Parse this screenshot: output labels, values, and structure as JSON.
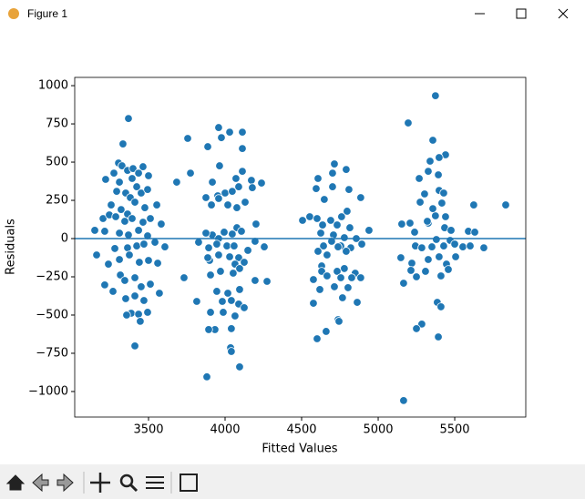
{
  "window": {
    "title": "Figure 1"
  },
  "chart_data": {
    "type": "scatter",
    "xlabel": "Fitted Values",
    "ylabel": "Residuals",
    "color": "#1f77b4",
    "hline": 0,
    "hline_color": "#1f77b4",
    "xlim": [
      3018,
      5964
    ],
    "ylim": [
      -1167,
      1054
    ],
    "xticks": [
      3500,
      4000,
      4500,
      5000,
      5500
    ],
    "yticks": [
      {
        "value": -1000,
        "label": "−1000"
      },
      {
        "value": -750,
        "label": "−750"
      },
      {
        "value": -500,
        "label": "−500"
      },
      {
        "value": -250,
        "label": "−250"
      },
      0,
      250,
      500,
      750,
      1000
    ],
    "x": [
      3369,
      3333,
      3304,
      3327,
      3363,
      3399,
      3435,
      3464,
      3500,
      3220,
      3274,
      3310,
      3393,
      3423,
      3452,
      3494,
      3292,
      3351,
      3381,
      3411,
      3256,
      3321,
      3363,
      3476,
      3554,
      3203,
      3244,
      3286,
      3345,
      3393,
      3464,
      3512,
      3583,
      3149,
      3214,
      3310,
      3369,
      3435,
      3494,
      3161,
      3280,
      3363,
      3423,
      3470,
      3542,
      3607,
      3238,
      3310,
      3375,
      3440,
      3500,
      3560,
      3214,
      3268,
      3316,
      3345,
      3411,
      3452,
      3512,
      3571,
      3351,
      3411,
      3470,
      3387,
      3435,
      3494,
      3357,
      3446,
      3411,
      3958,
      4030,
      4113,
      3887,
      3976,
      4113,
      3756,
      3774,
      3964,
      4071,
      4113,
      4172,
      3917,
      4000,
      4047,
      3952,
      4089,
      4238,
      3875,
      3958,
      4131,
      4178,
      4018,
      4077,
      3911,
      3684,
      4202,
      4077,
      3994,
      3917,
      3875,
      4047,
      4107,
      3958,
      4196,
      3827,
      4012,
      3946,
      4059,
      3893,
      4149,
      4256,
      3899,
      3958,
      4030,
      4089,
      4065,
      4125,
      3887,
      3732,
      3905,
      3970,
      4053,
      4095,
      4196,
      4274,
      3946,
      4018,
      4095,
      4041,
      3982,
      4089,
      3815,
      3905,
      3988,
      4065,
      4125,
      4041,
      3934,
      3893,
      4036,
      4041,
      4095,
      3881,
      4714,
      4607,
      4702,
      4791,
      4702,
      4595,
      4809,
      4886,
      4648,
      4553,
      4601,
      4637,
      4690,
      4761,
      4797,
      4732,
      4815,
      4940,
      4506,
      4625,
      4708,
      4779,
      4857,
      4643,
      4696,
      4756,
      4821,
      4893,
      4607,
      4666,
      4738,
      4791,
      4779,
      4732,
      4631,
      4631,
      4666,
      4850,
      4886,
      4827,
      4756,
      4577,
      4714,
      4619,
      4767,
      4803,
      4863,
      4577,
      4738,
      4744,
      4660,
      4601,
      5374,
      5196,
      5357,
      5440,
      5398,
      5339,
      5393,
      5327,
      5268,
      5303,
      5398,
      5428,
      5416,
      5274,
      5440,
      5374,
      5327,
      5357,
      5154,
      5208,
      5238,
      5321,
      5434,
      5476,
      5589,
      5624,
      5690,
      5243,
      5285,
      5351,
      5380,
      5428,
      5470,
      5500,
      5553,
      5148,
      5220,
      5327,
      5398,
      5446,
      5506,
      5458,
      5410,
      5214,
      5166,
      5309,
      5250,
      5386,
      5410,
      5285,
      5250,
      5393,
      5166,
      5601,
      5631,
      5833
    ],
    "values": [
      785,
      619,
      494,
      476,
      446,
      458,
      428,
      470,
      411,
      387,
      428,
      369,
      393,
      339,
      298,
      321,
      309,
      298,
      268,
      238,
      220,
      190,
      161,
      202,
      220,
      131,
      155,
      143,
      113,
      131,
      107,
      131,
      95,
      54,
      48,
      36,
      24,
      54,
      18,
      -107,
      -65,
      -60,
      -48,
      -36,
      -24,
      -54,
      -167,
      -137,
      -107,
      -155,
      -143,
      -161,
      -303,
      -345,
      -238,
      -274,
      -256,
      -315,
      -298,
      -357,
      -393,
      -375,
      -405,
      -488,
      -494,
      -482,
      -500,
      -541,
      -702,
      726,
      696,
      696,
      601,
      660,
      589,
      655,
      428,
      476,
      393,
      440,
      381,
      369,
      298,
      309,
      280,
      339,
      363,
      268,
      262,
      238,
      333,
      220,
      202,
      220,
      369,
      95,
      71,
      42,
      24,
      36,
      30,
      48,
      0,
      -18,
      -24,
      -48,
      -36,
      -48,
      -60,
      -77,
      -54,
      -143,
      -107,
      -119,
      -125,
      -167,
      -155,
      -125,
      -256,
      -238,
      -214,
      -226,
      -196,
      -274,
      -280,
      -345,
      -357,
      -333,
      -405,
      -411,
      -428,
      -411,
      -482,
      -482,
      -506,
      -452,
      -589,
      -595,
      -595,
      -714,
      -738,
      -839,
      -904,
      488,
      393,
      428,
      452,
      339,
      327,
      321,
      268,
      256,
      143,
      131,
      89,
      119,
      143,
      179,
      89,
      71,
      54,
      119,
      36,
      24,
      6,
      0,
      -48,
      -18,
      -48,
      -60,
      -36,
      -83,
      -107,
      -54,
      -83,
      -196,
      -214,
      -179,
      -214,
      -244,
      -226,
      -256,
      -256,
      -256,
      -268,
      -315,
      -333,
      -387,
      -321,
      -417,
      -423,
      -530,
      -541,
      -607,
      -655,
      934,
      756,
      643,
      548,
      530,
      506,
      417,
      440,
      393,
      292,
      315,
      298,
      232,
      238,
      143,
      149,
      101,
      196,
      95,
      101,
      42,
      113,
      71,
      54,
      48,
      220,
      -60,
      -48,
      -60,
      -54,
      -6,
      -48,
      -12,
      -36,
      -54,
      -125,
      -161,
      -137,
      -119,
      -167,
      -119,
      -202,
      -244,
      -208,
      -292,
      -214,
      -250,
      -417,
      -446,
      -559,
      -589,
      -643,
      -1059,
      -48,
      42,
      220
    ]
  }
}
